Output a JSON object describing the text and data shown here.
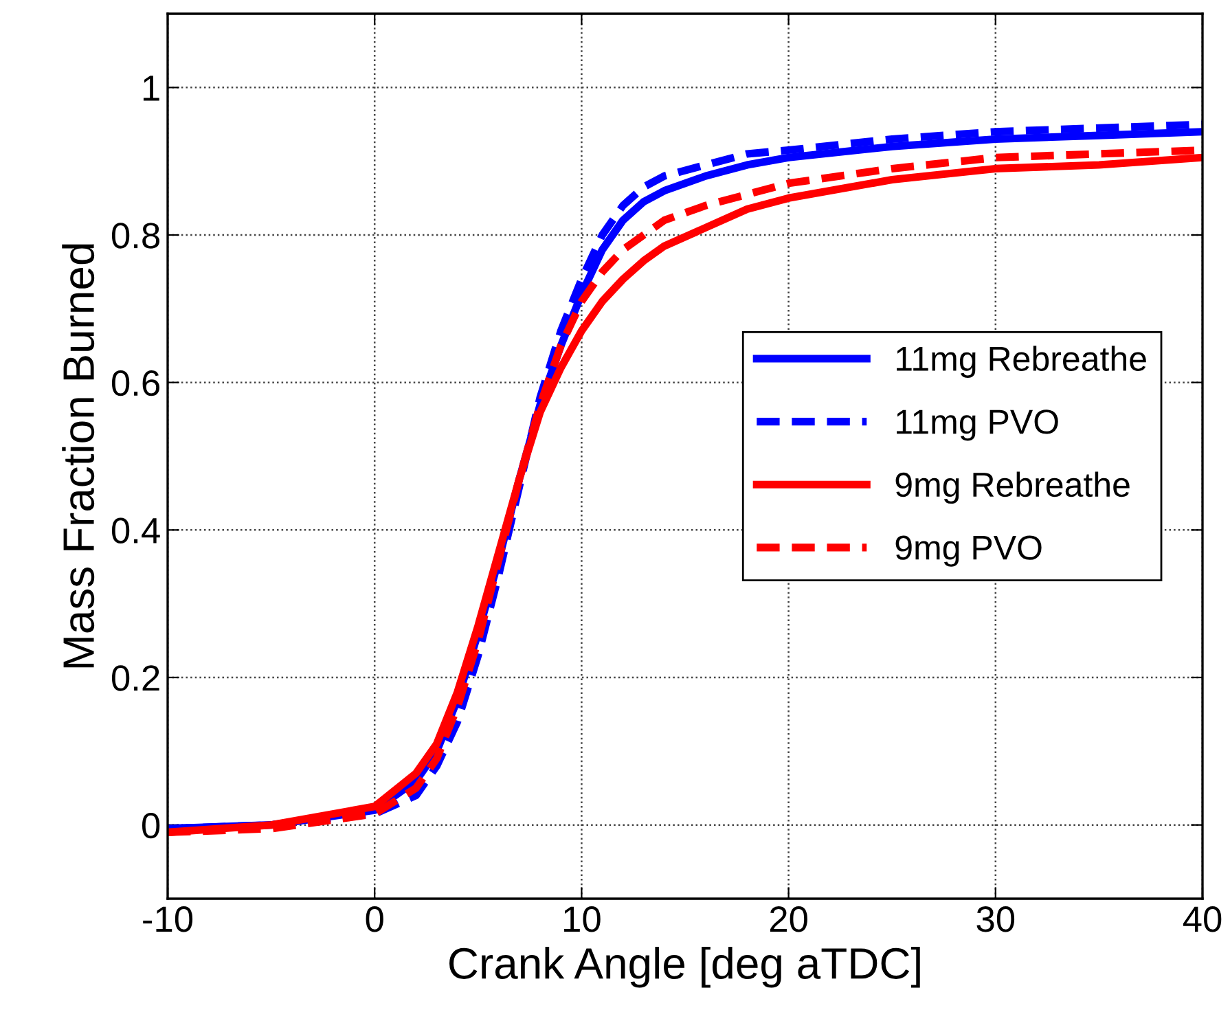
{
  "chart_data": {
    "type": "line",
    "xlabel": "Crank Angle [deg aTDC]",
    "ylabel": "Mass Fraction Burned",
    "x": [
      -10,
      -5,
      0,
      2,
      3,
      4,
      5,
      6,
      7,
      8,
      9,
      10,
      11,
      12,
      13,
      14,
      16,
      18,
      20,
      25,
      30,
      35,
      40
    ],
    "series": [
      {
        "name": "11mg Rebreathe",
        "color": "#0000ff",
        "line_style": "solid",
        "values": [
          -0.005,
          0.0,
          0.02,
          0.06,
          0.1,
          0.17,
          0.26,
          0.36,
          0.47,
          0.57,
          0.65,
          0.72,
          0.78,
          0.82,
          0.845,
          0.86,
          0.88,
          0.895,
          0.905,
          0.92,
          0.93,
          0.935,
          0.94
        ]
      },
      {
        "name": "11mg PVO",
        "color": "#0000ff",
        "line_style": "dashed",
        "values": [
          -0.005,
          0.0,
          0.015,
          0.04,
          0.08,
          0.14,
          0.23,
          0.34,
          0.46,
          0.58,
          0.67,
          0.74,
          0.8,
          0.84,
          0.865,
          0.88,
          0.895,
          0.91,
          0.915,
          0.93,
          0.94,
          0.945,
          0.95
        ]
      },
      {
        "name": "9mg Rebreathe",
        "color": "#ff0000",
        "line_style": "solid",
        "values": [
          -0.01,
          0.0,
          0.025,
          0.07,
          0.11,
          0.18,
          0.27,
          0.37,
          0.47,
          0.56,
          0.62,
          0.67,
          0.71,
          0.74,
          0.765,
          0.785,
          0.81,
          0.835,
          0.85,
          0.875,
          0.89,
          0.895,
          0.905
        ]
      },
      {
        "name": "9mg PVO",
        "color": "#ff0000",
        "line_style": "dashed",
        "values": [
          -0.01,
          -0.005,
          0.015,
          0.05,
          0.09,
          0.16,
          0.25,
          0.36,
          0.47,
          0.57,
          0.65,
          0.71,
          0.75,
          0.78,
          0.8,
          0.82,
          0.84,
          0.855,
          0.87,
          0.89,
          0.905,
          0.91,
          0.915
        ]
      }
    ],
    "xlim": [
      -10,
      40
    ],
    "xticks": [
      -10,
      0,
      10,
      20,
      30,
      40
    ],
    "ylim": [
      -0.1,
      1.1
    ],
    "yticks": [
      0,
      0.2,
      0.4,
      0.6,
      0.8,
      1
    ],
    "grid": true,
    "legend": "right",
    "marker": "none"
  }
}
